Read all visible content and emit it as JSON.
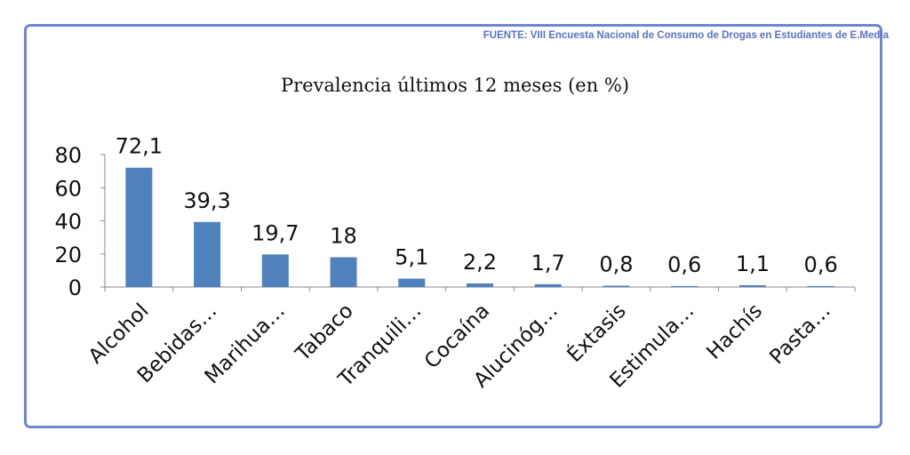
{
  "source": "FUENTE: VIII Encuesta Nacional de Consumo de Drogas en Estudiantes de E.Media",
  "colors": {
    "bar": "#4f81bd",
    "frame": "#6d86cf",
    "source_text": "#5b73c4"
  },
  "chart_data": {
    "type": "bar",
    "title": "Prevalencia últimos 12 meses (en %)",
    "xlabel": "",
    "ylabel": "",
    "categories": [
      "Alcohol",
      "Bebidas…",
      "Marihua…",
      "Tabaco",
      "Tranquili…",
      "Cocaína",
      "Alucinóg…",
      "Éxtasis",
      "Estimula…",
      "Hachís",
      "Pasta…"
    ],
    "values": [
      72.1,
      39.3,
      19.7,
      18,
      5.1,
      2.2,
      1.7,
      0.8,
      0.6,
      1.1,
      0.6
    ],
    "data_labels": [
      "72,1",
      "39,3",
      "19,7",
      "18",
      "5,1",
      "2,2",
      "1,7",
      "0,8",
      "0,6",
      "1,1",
      "0,6"
    ],
    "yticks": [
      0,
      20,
      40,
      60,
      80
    ],
    "ylim": [
      0,
      80
    ],
    "grid": false,
    "legend": "none"
  }
}
